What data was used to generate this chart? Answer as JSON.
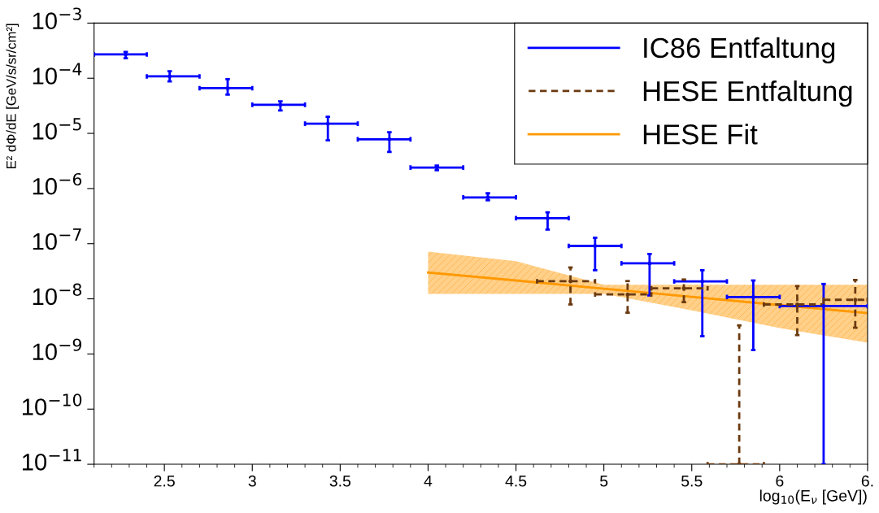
{
  "chart_data": {
    "type": "scatter",
    "xlabel": "log$_{10}$(E$_{ν}$ [GeV])",
    "ylabel": "E² dΦ/dE [GeV/s/sr/cm²]",
    "log": "y",
    "grid": false,
    "legend": "top right",
    "marker": "none",
    "xlim": [
      2.1,
      6.5
    ],
    "xticks": [
      2.5,
      3,
      3.5,
      4,
      4.5,
      5,
      5.5,
      6,
      {
        "value": 6.5,
        "label": "6."
      }
    ],
    "ylim": [
      1e-11,
      0.001
    ],
    "yticks": [
      {
        "value": 1e-11,
        "label": "10$^{−11}$"
      },
      {
        "value": 1e-10,
        "label": "10$^{−10}$"
      },
      {
        "value": 1e-09,
        "label": "10$^{−9}$"
      },
      {
        "value": 1e-08,
        "label": "10$^{−8}$"
      },
      {
        "value": 1e-07,
        "label": "10$^{−7}$"
      },
      {
        "value": 1e-06,
        "label": "10$^{−6}$"
      },
      {
        "value": 1e-05,
        "label": "10$^{−5}$"
      },
      {
        "value": 0.0001,
        "label": "10$^{−4}$"
      },
      {
        "value": 0.001,
        "label": "10$^{−3}$"
      }
    ],
    "series": [
      {
        "name": "IC86 Entfaltung",
        "color": "#0000ff",
        "line_style": "solid",
        "x": [
          2.28,
          2.53,
          2.86,
          3.16,
          3.43,
          3.78,
          4.05,
          4.34,
          4.68,
          4.95,
          5.26,
          5.56,
          5.85,
          6.25
        ],
        "values": [
          0.00027,
          0.000108,
          6.6e-05,
          3.3e-05,
          1.5e-05,
          7.8e-06,
          2.4e-06,
          6.9e-07,
          2.9e-07,
          9.1e-08,
          4.4e-08,
          2.07e-08,
          1.08e-08,
          7.4e-09
        ],
        "errors": [
          [
            0.00023,
            0.0003
          ],
          [
            8.75e-05,
            0.000134
          ],
          [
            5.05e-05,
            9.6e-05
          ],
          [
            2.6e-05,
            3.8e-05
          ],
          [
            7.5e-06,
            2e-05
          ],
          [
            4.6e-06,
            1.05e-05
          ],
          [
            2.15e-06,
            2.6e-06
          ],
          [
            6.1e-07,
            8.2e-07
          ],
          [
            1.8e-07,
            3.7e-07
          ],
          [
            3.3e-08,
            1.28e-07
          ],
          [
            1.15e-08,
            6.5e-08
          ],
          [
            2.1e-09,
            3.3e-08
          ],
          [
            1.18e-09,
            2.15e-08
          ],
          [
            1e-11,
            1.86e-08
          ]
        ],
        "xerrors": [
          [
            2.1,
            2.4
          ],
          [
            2.4,
            2.7
          ],
          [
            2.7,
            3.0
          ],
          [
            3.0,
            3.3
          ],
          [
            3.3,
            3.6
          ],
          [
            3.6,
            3.9
          ],
          [
            3.9,
            4.2
          ],
          [
            4.2,
            4.5
          ],
          [
            4.5,
            4.8
          ],
          [
            4.8,
            5.1
          ],
          [
            5.1,
            5.4
          ],
          [
            5.4,
            5.7
          ],
          [
            5.7,
            6.0
          ],
          [
            6.0,
            6.5
          ]
        ]
      },
      {
        "name": "HESE Entfaltung",
        "color": "#6b3a10",
        "line_style": "dashed",
        "x": [
          4.81,
          5.135,
          5.455,
          5.77,
          6.1,
          6.43
        ],
        "values": [
          2.08e-08,
          1.2e-08,
          1.55e-08,
          1e-11,
          7.9e-09,
          9.6e-09
        ],
        "errors": [
          [
            7.9e-09,
            3.7e-08
          ],
          [
            5.6e-09,
            2.1e-08
          ],
          [
            8.7e-09,
            2.24e-08
          ],
          [
            1e-11,
            3.3e-09
          ],
          [
            2.2e-09,
            1.7e-08
          ],
          [
            3e-09,
            2.2e-08
          ]
        ],
        "xerrors": [
          [
            4.62,
            4.95
          ],
          [
            4.95,
            5.27
          ],
          [
            5.27,
            5.59
          ],
          [
            5.59,
            5.91
          ],
          [
            5.91,
            6.25
          ],
          [
            6.25,
            6.5
          ]
        ]
      },
      {
        "name": "HESE Fit",
        "type": "line",
        "color": "#ff9900",
        "line_style": "solid",
        "x": [
          4,
          4.5,
          5,
          5.5,
          6,
          6.5
        ],
        "values": [
          3e-08,
          2.15e-08,
          1.53e-08,
          1.09e-08,
          7.7e-09,
          5.5e-09
        ],
        "lower": [
          1.23e-08,
          1.23e-08,
          1.23e-08,
          6.2e-09,
          2.95e-09,
          1.6e-09
        ],
        "upper": [
          7.2e-08,
          4.8e-08,
          1.8e-08,
          1.8e-08,
          1.8e-08,
          1.8e-08
        ]
      }
    ]
  }
}
